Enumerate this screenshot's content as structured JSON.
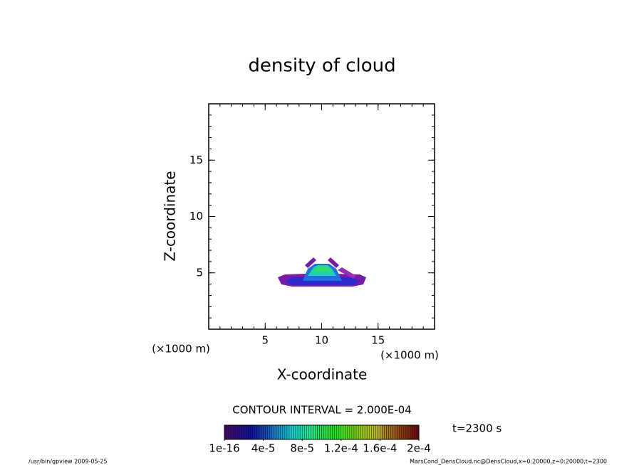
{
  "chart_data": {
    "type": "contour",
    "title": "density of cloud",
    "xlabel": "X-coordinate",
    "ylabel": "Z-coordinate",
    "xunit": "(×1000 m)",
    "yunit": "(×1000 m)",
    "xlim": [
      0,
      20
    ],
    "ylim": [
      0,
      20
    ],
    "xticks": [
      5,
      10,
      15
    ],
    "yticks": [
      5,
      10,
      15
    ],
    "contour_interval": "CONTOUR INTERVAL = 2.000E-04",
    "time_label": "t=2300 s",
    "colorbar": {
      "lim": [
        0,
        0.0002
      ],
      "ticks": [
        {
          "value": 1e-16,
          "label": "1e-16"
        },
        {
          "value": 4e-05,
          "label": "4e-5"
        },
        {
          "value": 8e-05,
          "label": "8e-5"
        },
        {
          "value": 0.00012,
          "label": "1.2e-4"
        },
        {
          "value": 0.00016,
          "label": "1.6e-4"
        },
        {
          "value": 0.0002,
          "label": "2e-4"
        }
      ]
    },
    "footer_left": "/usr/bin/gpview   2009-05-25",
    "footer_right": "MarsCond_DensCloud.nc@DensCloud,x=0:20000,z=0:20000,t=2300"
  }
}
